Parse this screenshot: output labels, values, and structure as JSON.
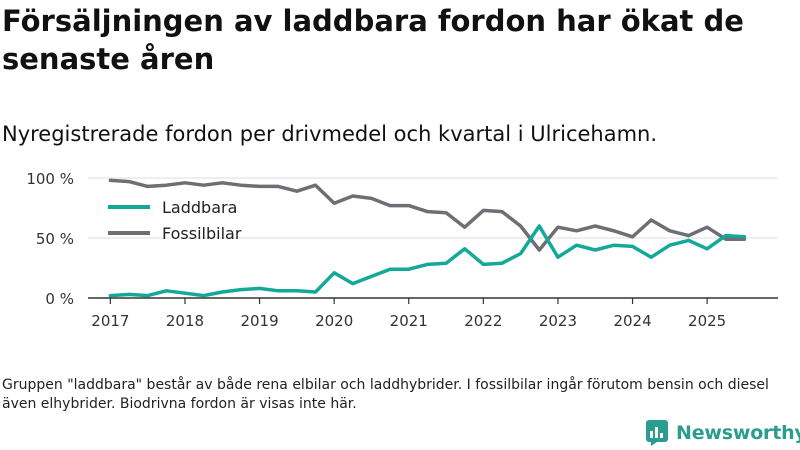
{
  "title": "Försäljningen av laddbara fordon har ökat de senaste åren",
  "subtitle": "Nyregistrerade fordon per drivmedel och kvartal i Ulricehamn.",
  "footnote": "Gruppen \"laddbara\" består av både rena elbilar och laddhybrider. I fossilbilar ingår förutom bensin och diesel även elhybrider. Biodrivna fordon är visas inte här.",
  "brand": {
    "name": "Newsworthy"
  },
  "chart_data": {
    "type": "line",
    "x_label_years": [
      "2017",
      "2018",
      "2019",
      "2020",
      "2021",
      "2022",
      "2023",
      "2024",
      "2025"
    ],
    "y_ticks": [
      {
        "value": 0,
        "label": "0 %"
      },
      {
        "value": 50,
        "label": "50 %"
      },
      {
        "value": 100,
        "label": "100 %"
      }
    ],
    "ylim": [
      0,
      100
    ],
    "xlim": [
      2016.7,
      2025.95
    ],
    "series": [
      {
        "name": "Laddbara",
        "color": "#14a899",
        "x": [
          2017.0,
          2017.25,
          2017.5,
          2017.75,
          2018.0,
          2018.25,
          2018.5,
          2018.75,
          2019.0,
          2019.25,
          2019.5,
          2019.75,
          2020.0,
          2020.25,
          2020.5,
          2020.75,
          2021.0,
          2021.25,
          2021.5,
          2021.75,
          2022.0,
          2022.25,
          2022.5,
          2022.75,
          2023.0,
          2023.25,
          2023.5,
          2023.75,
          2024.0,
          2024.25,
          2024.5,
          2024.75,
          2025.0,
          2025.25,
          2025.5
        ],
        "values": [
          2,
          3,
          2,
          6,
          4,
          2,
          5,
          7,
          8,
          6,
          6,
          5,
          21,
          12,
          18,
          24,
          24,
          28,
          29,
          41,
          28,
          29,
          37,
          60,
          34,
          44,
          40,
          44,
          43,
          34,
          44,
          48,
          41,
          52,
          51
        ]
      },
      {
        "name": "Fossilbilar",
        "color": "#6e6e74",
        "x": [
          2017.0,
          2017.25,
          2017.5,
          2017.75,
          2018.0,
          2018.25,
          2018.5,
          2018.75,
          2019.0,
          2019.25,
          2019.5,
          2019.75,
          2020.0,
          2020.25,
          2020.5,
          2020.75,
          2021.0,
          2021.25,
          2021.5,
          2021.75,
          2022.0,
          2022.25,
          2022.5,
          2022.75,
          2023.0,
          2023.25,
          2023.5,
          2023.75,
          2024.0,
          2024.25,
          2024.5,
          2024.75,
          2025.0,
          2025.25,
          2025.5
        ],
        "values": [
          98,
          97,
          93,
          94,
          96,
          94,
          96,
          94,
          93,
          93,
          89,
          94,
          79,
          85,
          83,
          77,
          77,
          72,
          71,
          59,
          73,
          72,
          60,
          40,
          59,
          56,
          60,
          56,
          51,
          65,
          56,
          52,
          59,
          49,
          49
        ]
      }
    ]
  }
}
